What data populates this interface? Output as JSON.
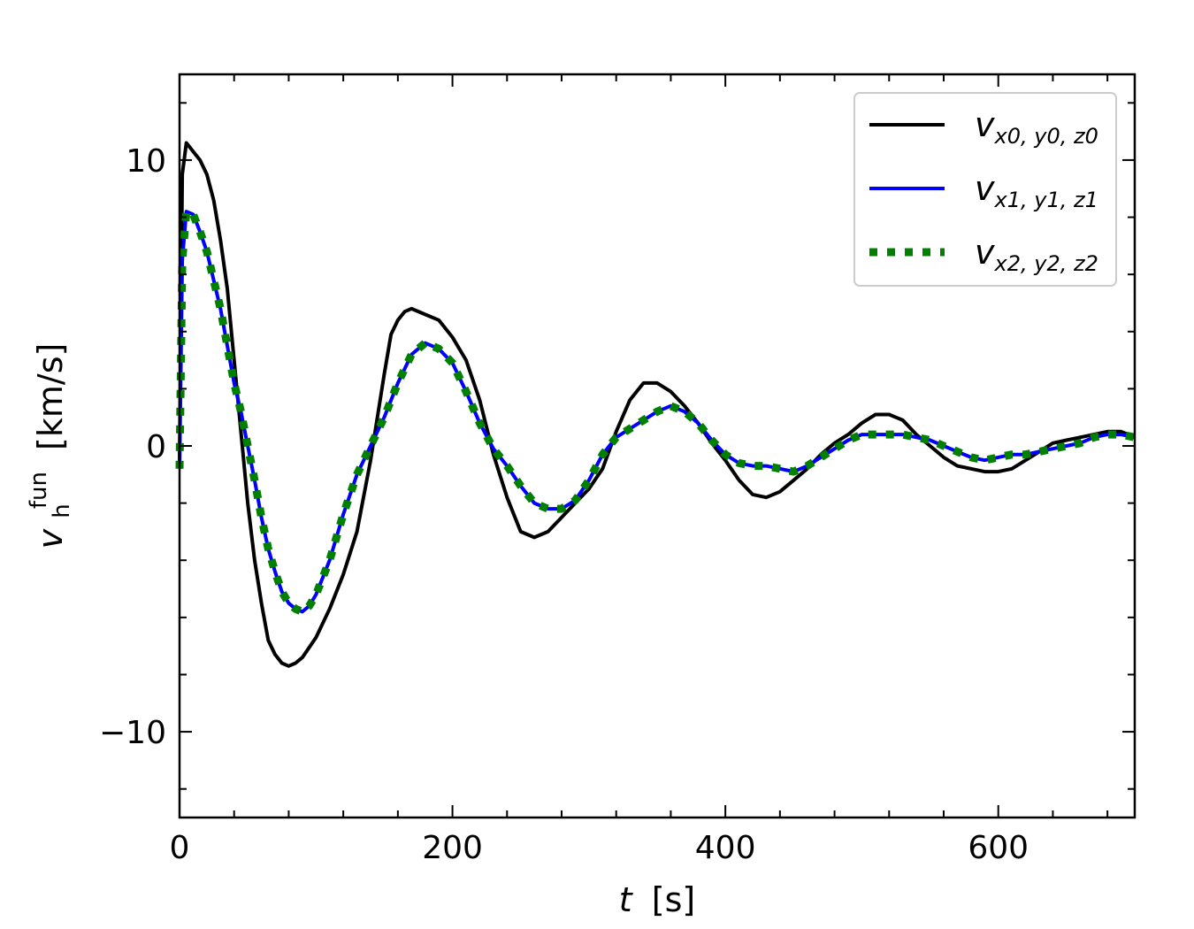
{
  "chart_data": {
    "type": "line",
    "xlabel_var": "t",
    "xlabel_unit": "[s]",
    "ylabel_var": "v",
    "ylabel_sub": "h",
    "ylabel_sup": "fun",
    "ylabel_unit": "[km/s]",
    "xlim": [
      0,
      700
    ],
    "ylim": [
      -13,
      13
    ],
    "xticks": [
      0,
      200,
      400,
      600
    ],
    "yticks": [
      -10,
      0,
      10
    ],
    "xtick_labels": [
      "0",
      "200",
      "400",
      "600"
    ],
    "ytick_labels": [
      "−10",
      "0",
      "10"
    ],
    "x_minor_step": 40,
    "y_minor_step": 2,
    "grid": false,
    "legend_position": "top-right",
    "series": [
      {
        "name": "v_{x0,y0,z0}",
        "legend_main": "v",
        "legend_subs": [
          "x0",
          "y0",
          "z0"
        ],
        "color": "#000000",
        "style": "solid",
        "points": [
          [
            0,
            -0.5
          ],
          [
            2,
            9.5
          ],
          [
            5,
            10.6
          ],
          [
            10,
            10.3
          ],
          [
            15,
            10
          ],
          [
            20,
            9.5
          ],
          [
            25,
            8.6
          ],
          [
            30,
            7.2
          ],
          [
            35,
            5.5
          ],
          [
            40,
            3.0
          ],
          [
            45,
            0.5
          ],
          [
            50,
            -2
          ],
          [
            55,
            -4
          ],
          [
            60,
            -5.5
          ],
          [
            65,
            -6.8
          ],
          [
            70,
            -7.3
          ],
          [
            75,
            -7.6
          ],
          [
            80,
            -7.7
          ],
          [
            85,
            -7.6
          ],
          [
            90,
            -7.4
          ],
          [
            100,
            -6.7
          ],
          [
            110,
            -5.7
          ],
          [
            120,
            -4.5
          ],
          [
            130,
            -3.0
          ],
          [
            140,
            -0.5
          ],
          [
            150,
            2.5
          ],
          [
            155,
            3.9
          ],
          [
            160,
            4.4
          ],
          [
            165,
            4.7
          ],
          [
            170,
            4.8
          ],
          [
            180,
            4.6
          ],
          [
            190,
            4.4
          ],
          [
            200,
            3.8
          ],
          [
            210,
            3.0
          ],
          [
            220,
            1.6
          ],
          [
            230,
            -0.3
          ],
          [
            240,
            -1.8
          ],
          [
            250,
            -3.0
          ],
          [
            260,
            -3.2
          ],
          [
            270,
            -3.0
          ],
          [
            280,
            -2.5
          ],
          [
            290,
            -2.0
          ],
          [
            300,
            -1.5
          ],
          [
            310,
            -0.8
          ],
          [
            320,
            0.5
          ],
          [
            330,
            1.6
          ],
          [
            340,
            2.2
          ],
          [
            350,
            2.2
          ],
          [
            360,
            1.9
          ],
          [
            370,
            1.4
          ],
          [
            380,
            0.8
          ],
          [
            390,
            0.1
          ],
          [
            400,
            -0.5
          ],
          [
            410,
            -1.2
          ],
          [
            420,
            -1.7
          ],
          [
            430,
            -1.8
          ],
          [
            440,
            -1.6
          ],
          [
            450,
            -1.2
          ],
          [
            460,
            -0.8
          ],
          [
            470,
            -0.3
          ],
          [
            480,
            0.1
          ],
          [
            490,
            0.4
          ],
          [
            500,
            0.8
          ],
          [
            510,
            1.1
          ],
          [
            520,
            1.1
          ],
          [
            530,
            0.9
          ],
          [
            540,
            0.4
          ],
          [
            550,
            0.0
          ],
          [
            560,
            -0.4
          ],
          [
            570,
            -0.7
          ],
          [
            580,
            -0.8
          ],
          [
            590,
            -0.9
          ],
          [
            600,
            -0.9
          ],
          [
            610,
            -0.8
          ],
          [
            620,
            -0.5
          ],
          [
            630,
            -0.2
          ],
          [
            640,
            0.1
          ],
          [
            650,
            0.2
          ],
          [
            660,
            0.3
          ],
          [
            670,
            0.4
          ],
          [
            680,
            0.5
          ],
          [
            690,
            0.5
          ],
          [
            700,
            0.3
          ]
        ]
      },
      {
        "name": "v_{x1,y1,z1}",
        "legend_main": "v",
        "legend_subs": [
          "x1",
          "y1",
          "z1"
        ],
        "color": "#0000ff",
        "style": "solid",
        "points": [
          [
            0,
            -0.8
          ],
          [
            2,
            6.5
          ],
          [
            5,
            8.2
          ],
          [
            10,
            8.1
          ],
          [
            15,
            7.5
          ],
          [
            20,
            6.8
          ],
          [
            25,
            5.8
          ],
          [
            30,
            4.8
          ],
          [
            35,
            3.5
          ],
          [
            40,
            2.2
          ],
          [
            45,
            1.2
          ],
          [
            50,
            0.0
          ],
          [
            55,
            -1.2
          ],
          [
            60,
            -2.5
          ],
          [
            65,
            -3.6
          ],
          [
            70,
            -4.4
          ],
          [
            75,
            -5.1
          ],
          [
            80,
            -5.5
          ],
          [
            85,
            -5.7
          ],
          [
            90,
            -5.8
          ],
          [
            95,
            -5.6
          ],
          [
            100,
            -5.2
          ],
          [
            110,
            -4.0
          ],
          [
            120,
            -2.4
          ],
          [
            130,
            -1.0
          ],
          [
            140,
            0.0
          ],
          [
            150,
            1.0
          ],
          [
            160,
            2.2
          ],
          [
            170,
            3.2
          ],
          [
            180,
            3.6
          ],
          [
            190,
            3.4
          ],
          [
            200,
            2.9
          ],
          [
            210,
            1.9
          ],
          [
            220,
            0.8
          ],
          [
            230,
            -0.1
          ],
          [
            240,
            -0.7
          ],
          [
            250,
            -1.4
          ],
          [
            260,
            -2.0
          ],
          [
            270,
            -2.2
          ],
          [
            280,
            -2.2
          ],
          [
            290,
            -1.9
          ],
          [
            300,
            -1.2
          ],
          [
            310,
            -0.3
          ],
          [
            320,
            0.3
          ],
          [
            330,
            0.6
          ],
          [
            340,
            0.9
          ],
          [
            350,
            1.2
          ],
          [
            360,
            1.4
          ],
          [
            370,
            1.2
          ],
          [
            380,
            0.8
          ],
          [
            390,
            0.2
          ],
          [
            400,
            -0.3
          ],
          [
            410,
            -0.6
          ],
          [
            420,
            -0.7
          ],
          [
            430,
            -0.7
          ],
          [
            440,
            -0.8
          ],
          [
            450,
            -0.9
          ],
          [
            460,
            -0.7
          ],
          [
            470,
            -0.4
          ],
          [
            480,
            -0.1
          ],
          [
            490,
            0.2
          ],
          [
            500,
            0.4
          ],
          [
            510,
            0.4
          ],
          [
            520,
            0.4
          ],
          [
            530,
            0.4
          ],
          [
            540,
            0.3
          ],
          [
            550,
            0.2
          ],
          [
            560,
            0.0
          ],
          [
            570,
            -0.2
          ],
          [
            580,
            -0.4
          ],
          [
            590,
            -0.5
          ],
          [
            600,
            -0.4
          ],
          [
            610,
            -0.3
          ],
          [
            620,
            -0.3
          ],
          [
            630,
            -0.2
          ],
          [
            640,
            -0.1
          ],
          [
            650,
            0.0
          ],
          [
            660,
            0.1
          ],
          [
            670,
            0.3
          ],
          [
            680,
            0.4
          ],
          [
            690,
            0.4
          ],
          [
            700,
            0.3
          ]
        ]
      },
      {
        "name": "v_{x2,y2,z2}",
        "legend_main": "v",
        "legend_subs": [
          "x2",
          "y2",
          "z2"
        ],
        "color": "#008000",
        "style": "dotted",
        "points": [
          [
            0,
            -0.8
          ],
          [
            2,
            6.5
          ],
          [
            5,
            8.2
          ],
          [
            10,
            8.1
          ],
          [
            15,
            7.5
          ],
          [
            20,
            6.8
          ],
          [
            25,
            5.8
          ],
          [
            30,
            4.8
          ],
          [
            35,
            3.5
          ],
          [
            40,
            2.2
          ],
          [
            45,
            1.2
          ],
          [
            50,
            0.0
          ],
          [
            55,
            -1.2
          ],
          [
            60,
            -2.5
          ],
          [
            65,
            -3.6
          ],
          [
            70,
            -4.4
          ],
          [
            75,
            -5.1
          ],
          [
            80,
            -5.5
          ],
          [
            85,
            -5.7
          ],
          [
            90,
            -5.8
          ],
          [
            95,
            -5.6
          ],
          [
            100,
            -5.2
          ],
          [
            110,
            -4.0
          ],
          [
            120,
            -2.4
          ],
          [
            130,
            -1.0
          ],
          [
            140,
            0.0
          ],
          [
            150,
            1.0
          ],
          [
            160,
            2.2
          ],
          [
            170,
            3.2
          ],
          [
            180,
            3.6
          ],
          [
            190,
            3.4
          ],
          [
            200,
            2.9
          ],
          [
            210,
            1.9
          ],
          [
            220,
            0.8
          ],
          [
            230,
            -0.1
          ],
          [
            240,
            -0.7
          ],
          [
            250,
            -1.4
          ],
          [
            260,
            -2.0
          ],
          [
            270,
            -2.2
          ],
          [
            280,
            -2.2
          ],
          [
            290,
            -1.9
          ],
          [
            300,
            -1.2
          ],
          [
            310,
            -0.3
          ],
          [
            320,
            0.3
          ],
          [
            330,
            0.6
          ],
          [
            340,
            0.9
          ],
          [
            350,
            1.2
          ],
          [
            360,
            1.4
          ],
          [
            370,
            1.2
          ],
          [
            380,
            0.8
          ],
          [
            390,
            0.2
          ],
          [
            400,
            -0.3
          ],
          [
            410,
            -0.6
          ],
          [
            420,
            -0.7
          ],
          [
            430,
            -0.7
          ],
          [
            440,
            -0.8
          ],
          [
            450,
            -0.9
          ],
          [
            460,
            -0.7
          ],
          [
            470,
            -0.4
          ],
          [
            480,
            -0.1
          ],
          [
            490,
            0.2
          ],
          [
            500,
            0.4
          ],
          [
            510,
            0.4
          ],
          [
            520,
            0.4
          ],
          [
            530,
            0.4
          ],
          [
            540,
            0.3
          ],
          [
            550,
            0.2
          ],
          [
            560,
            0.0
          ],
          [
            570,
            -0.2
          ],
          [
            580,
            -0.4
          ],
          [
            590,
            -0.5
          ],
          [
            600,
            -0.4
          ],
          [
            610,
            -0.3
          ],
          [
            620,
            -0.3
          ],
          [
            630,
            -0.2
          ],
          [
            640,
            -0.1
          ],
          [
            650,
            0.0
          ],
          [
            660,
            0.1
          ],
          [
            670,
            0.3
          ],
          [
            680,
            0.4
          ],
          [
            690,
            0.4
          ],
          [
            700,
            0.3
          ]
        ]
      }
    ]
  }
}
